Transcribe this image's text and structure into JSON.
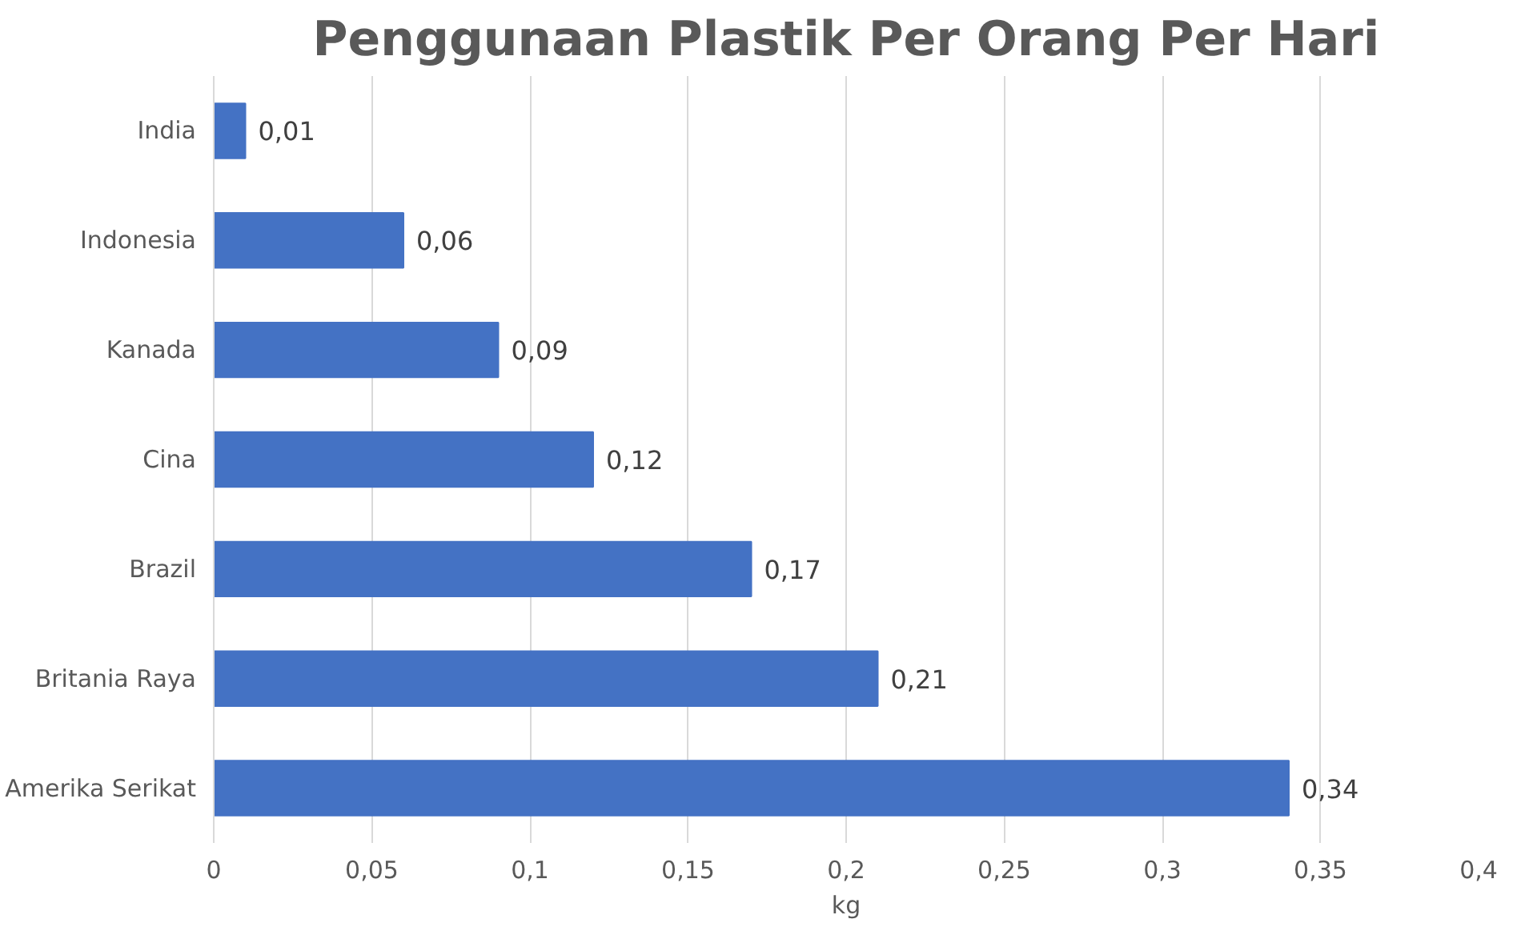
{
  "chart_data": {
    "type": "bar",
    "orientation": "horizontal",
    "title": "Penggunaan Plastik Per Orang Per Hari",
    "xlabel": "kg",
    "categories": [
      "India",
      "Indonesia",
      "Kanada",
      "Cina",
      "Brazil",
      "Britania Raya",
      "Amerika Serikat"
    ],
    "values": [
      0.01,
      0.06,
      0.09,
      0.12,
      0.17,
      0.21,
      0.34
    ],
    "value_labels": [
      "0,01",
      "0,06",
      "0,09",
      "0,12",
      "0,17",
      "0,21",
      "0,34"
    ],
    "color": "#4472c4",
    "xlim": [
      0,
      0.4
    ],
    "xticks": [
      0,
      {
        "value": 0.05,
        "label": "0,05"
      },
      {
        "value": 0.1,
        "label": "0,1"
      },
      {
        "value": 0.15,
        "label": "0,15"
      },
      {
        "value": 0.2,
        "label": "0,2"
      },
      {
        "value": 0.25,
        "label": "0,25"
      },
      {
        "value": 0.3,
        "label": "0,3"
      },
      {
        "value": 0.35,
        "label": "0,35"
      },
      {
        "value": 0.4,
        "label": "0,4"
      }
    ],
    "grid": "x"
  }
}
